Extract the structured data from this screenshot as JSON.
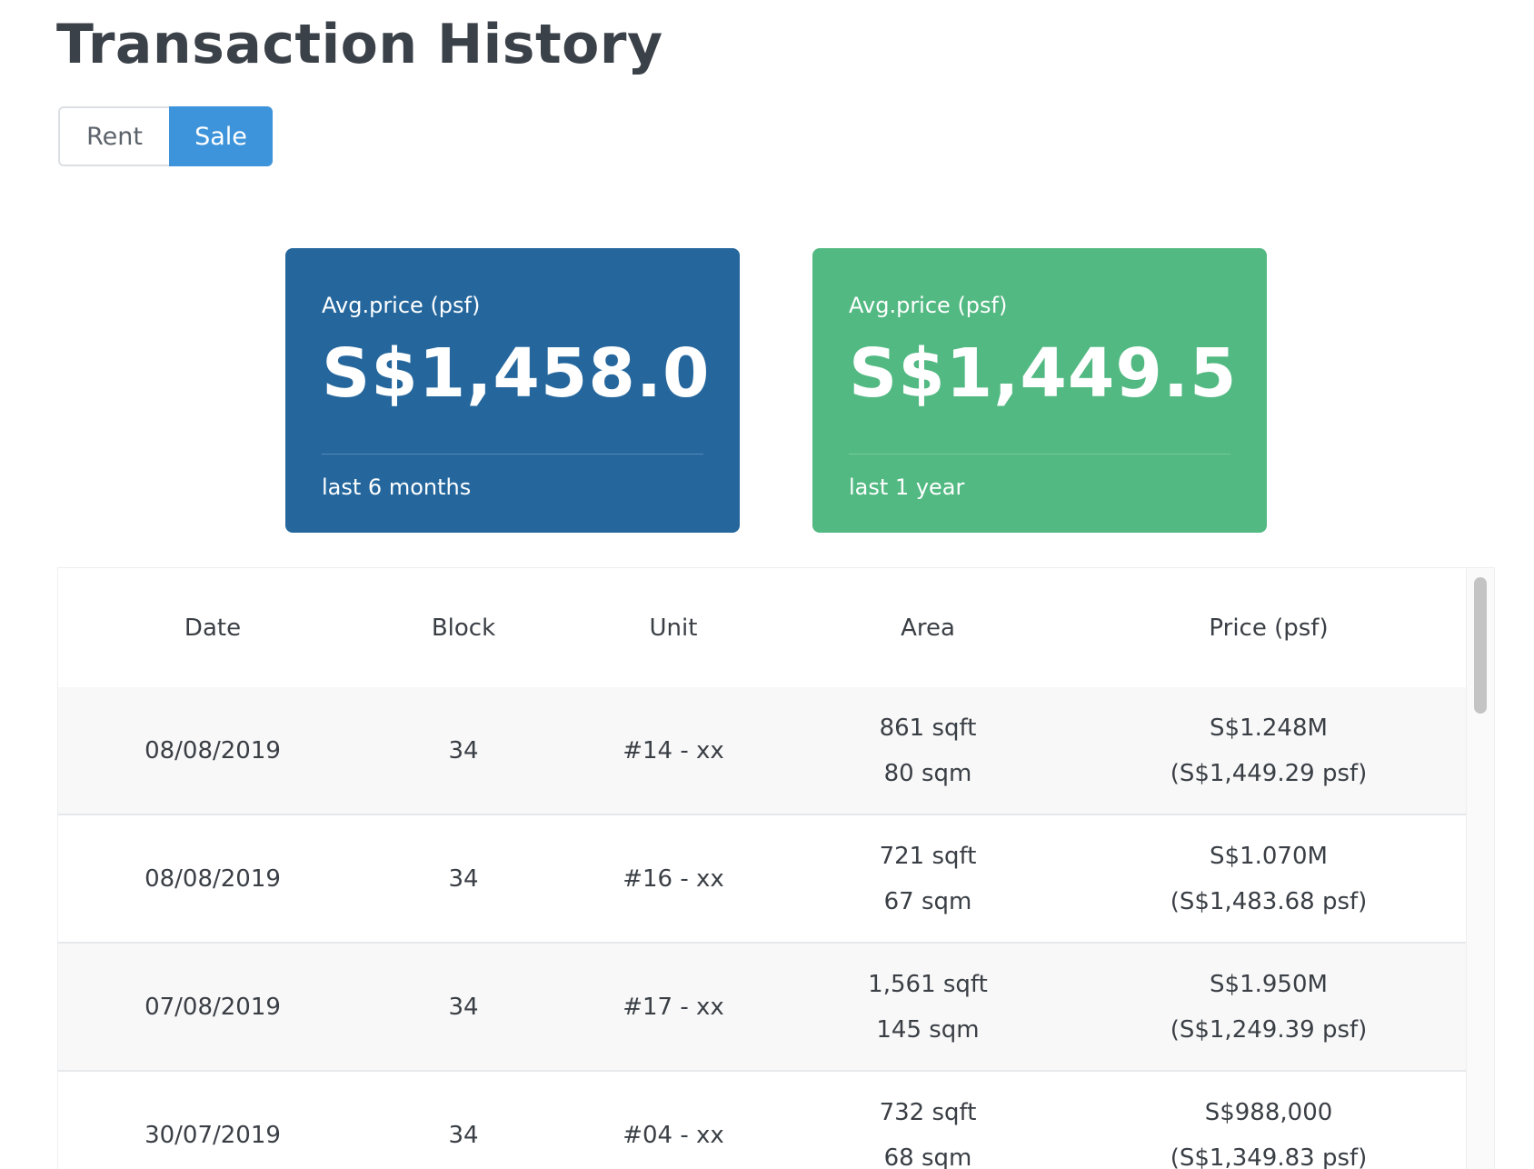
{
  "page": {
    "title": "Transaction History"
  },
  "toggle": {
    "rent_label": "Rent",
    "sale_label": "Sale",
    "selected": "Sale"
  },
  "cards": {
    "six_months": {
      "label": "Avg.price (psf)",
      "value": "S$1,458.0",
      "period": "last 6 months",
      "color": "#25679d"
    },
    "one_year": {
      "label": "Avg.price (psf)",
      "value": "S$1,449.5",
      "period": "last 1 year",
      "color": "#52b982"
    }
  },
  "table": {
    "headers": {
      "date": "Date",
      "block": "Block",
      "unit": "Unit",
      "area": "Area",
      "price": "Price (psf)"
    },
    "rows": [
      {
        "date": "08/08/2019",
        "block": "34",
        "unit": "#14 - xx",
        "area_sqft": "861 sqft",
        "area_sqm": "80 sqm",
        "price": "S$1.248M",
        "psf": "(S$1,449.29 psf)"
      },
      {
        "date": "08/08/2019",
        "block": "34",
        "unit": "#16 - xx",
        "area_sqft": "721 sqft",
        "area_sqm": "67 sqm",
        "price": "S$1.070M",
        "psf": "(S$1,483.68 psf)"
      },
      {
        "date": "07/08/2019",
        "block": "34",
        "unit": "#17 - xx",
        "area_sqft": "1,561 sqft",
        "area_sqm": "145 sqm",
        "price": "S$1.950M",
        "psf": "(S$1,249.39 psf)"
      },
      {
        "date": "30/07/2019",
        "block": "34",
        "unit": "#04 - xx",
        "area_sqft": "732 sqft",
        "area_sqm": "68 sqm",
        "price": "S$988,000",
        "psf": "(S$1,349.83 psf)"
      }
    ]
  },
  "colors": {
    "accent": "#3d94db",
    "text": "#3a3f45",
    "row_alt": "#f8f8f8"
  }
}
